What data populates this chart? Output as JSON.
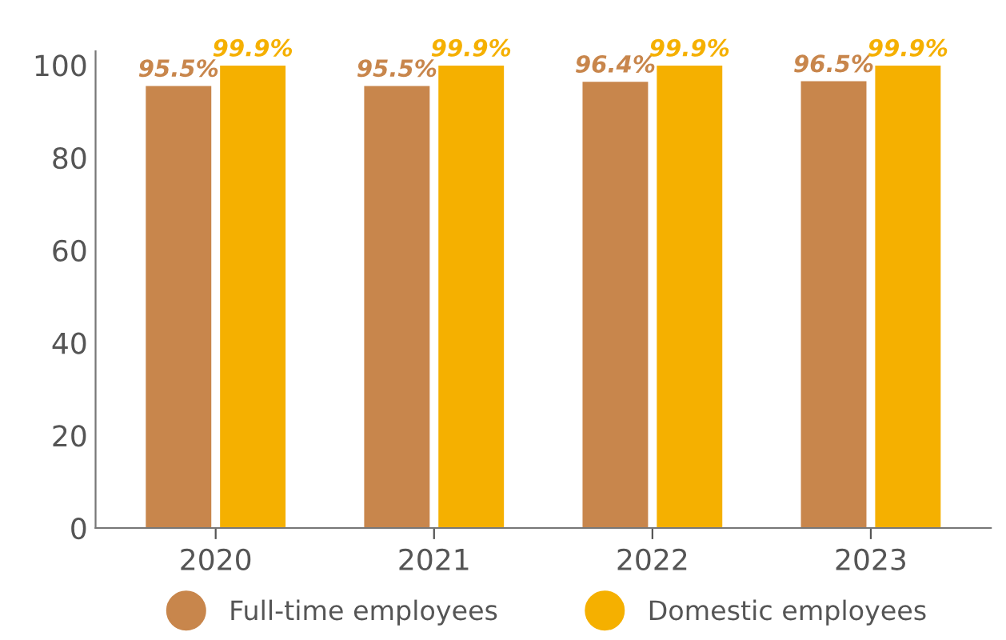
{
  "chart_data": {
    "type": "bar",
    "categories": [
      "2020",
      "2021",
      "2022",
      "2023"
    ],
    "series": [
      {
        "name": "Full-time employees",
        "color": "#c8864c",
        "values": [
          95.5,
          95.5,
          96.4,
          96.5
        ],
        "value_labels": [
          "95.5%",
          "95.5%",
          "96.4%",
          "96.5%"
        ]
      },
      {
        "name": "Domestic employees",
        "color": "#f5b000",
        "values": [
          99.9,
          99.9,
          99.9,
          99.9
        ],
        "value_labels": [
          "99.9%",
          "99.9%",
          "99.9%",
          "99.9%"
        ]
      }
    ],
    "ylim": [
      0,
      103
    ],
    "yticks": [
      0,
      20,
      40,
      60,
      80,
      100
    ],
    "grid": false,
    "legend": "bottom"
  }
}
